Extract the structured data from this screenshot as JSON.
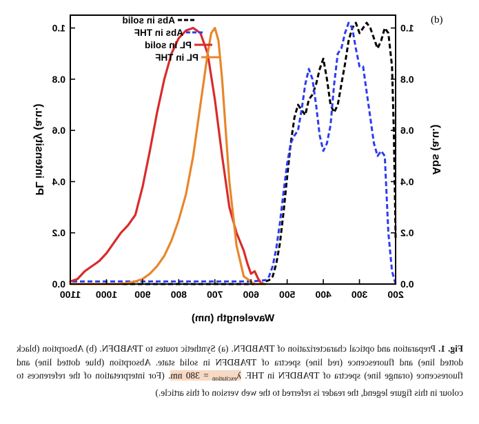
{
  "colors": {
    "red": "#d92b2b",
    "orange": "#e8862a",
    "blue": "#2b3bf0",
    "black": "#000000",
    "highlight": "#f7d9c4"
  },
  "figure": {
    "panel_label": "(b)"
  },
  "caption": {
    "prefix": "Fig. 1.",
    "part1": " Preparation and optical characterization of TPABDFN. (a) Synthetic routes to TPABDFN. (b) Absorption (black dotted line) and fluorescence (red line) spectra of TPABDFN in solid state. Absorption (blue dotted line) and fluorescence (orange line) spectra of TPABDFN in THF. ",
    "lambda": "λ",
    "lambda_sub": "excitation",
    "lambda_eq": " = 380 nm",
    "part2": ". (For interpretation of the references to colour in this figure legend, the reader is referred to the web version of this article.)"
  },
  "chart_data": {
    "type": "line",
    "mirrored": true,
    "xlabel": "Wavelength (nm)",
    "ylabel_left": "PL intensity (a.u.)",
    "ylabel_right": "Abs (a.u.)",
    "xlim": [
      200,
      1100
    ],
    "xticks": [
      200,
      300,
      400,
      500,
      600,
      700,
      800,
      900,
      1000,
      1100
    ],
    "ylim": [
      0,
      1.05
    ],
    "yticks": [
      "0.0",
      "0.2",
      "0.4",
      "0.6",
      "0.8",
      "1.0"
    ],
    "legend": [
      "Abs in solid",
      "Abs in THF",
      "PL in solid",
      "PL in THF"
    ],
    "series": [
      {
        "name": "Abs in solid",
        "color": "#000000",
        "style": "dash",
        "x": [
          200,
          205,
          210,
          220,
          230,
          240,
          250,
          260,
          270,
          280,
          290,
          300,
          310,
          320,
          330,
          340,
          350,
          360,
          370,
          380,
          390,
          400,
          410,
          420,
          430,
          440,
          450,
          460,
          470,
          480,
          490,
          500,
          510,
          520,
          530,
          540,
          550,
          560,
          570,
          580,
          600,
          700,
          800,
          900,
          1100
        ],
        "y": [
          0.18,
          0.6,
          0.85,
          0.98,
          1.0,
          0.95,
          0.92,
          0.96,
          1.0,
          1.02,
          1.0,
          0.98,
          1.02,
          1.0,
          0.95,
          0.86,
          0.78,
          0.7,
          0.67,
          0.7,
          0.8,
          0.88,
          0.84,
          0.78,
          0.74,
          0.72,
          0.66,
          0.68,
          0.7,
          0.65,
          0.55,
          0.42,
          0.28,
          0.16,
          0.08,
          0.03,
          0.015,
          0.01,
          0.0,
          0.0,
          0.0,
          0.0,
          0.0,
          0.0,
          0.0
        ]
      },
      {
        "name": "Abs in THF",
        "color": "#2b3bf0",
        "style": "dash",
        "x": [
          200,
          210,
          220,
          230,
          240,
          250,
          260,
          270,
          280,
          290,
          300,
          310,
          320,
          330,
          340,
          350,
          360,
          370,
          380,
          390,
          400,
          410,
          420,
          430,
          440,
          450,
          460,
          470,
          480,
          490,
          500,
          510,
          520,
          530,
          540,
          550,
          560,
          600,
          700,
          800,
          900,
          1100
        ],
        "y": [
          0.0,
          0.05,
          0.2,
          0.5,
          0.52,
          0.5,
          0.55,
          0.65,
          0.75,
          0.85,
          0.85,
          0.92,
          1.0,
          1.02,
          0.98,
          0.92,
          0.9,
          0.78,
          0.62,
          0.55,
          0.52,
          0.58,
          0.7,
          0.8,
          0.84,
          0.78,
          0.68,
          0.6,
          0.58,
          0.55,
          0.47,
          0.36,
          0.24,
          0.14,
          0.07,
          0.03,
          0.015,
          0.01,
          0.01,
          0.01,
          0.01,
          0.01
        ]
      },
      {
        "name": "PL in solid",
        "color": "#d92b2b",
        "style": "solid",
        "x": [
          560,
          570,
          580,
          590,
          600,
          610,
          620,
          640,
          660,
          680,
          700,
          720,
          740,
          760,
          780,
          800,
          820,
          840,
          860,
          880,
          900,
          920,
          940,
          960,
          980,
          1000,
          1020,
          1040,
          1060,
          1080,
          1100
        ],
        "y": [
          0.0,
          0.0,
          0.02,
          0.05,
          0.04,
          0.08,
          0.13,
          0.2,
          0.3,
          0.5,
          0.72,
          0.9,
          0.98,
          1.0,
          0.99,
          0.96,
          0.9,
          0.8,
          0.67,
          0.52,
          0.38,
          0.27,
          0.23,
          0.2,
          0.16,
          0.12,
          0.09,
          0.07,
          0.05,
          0.02,
          0.01
        ]
      },
      {
        "name": "PL in THF",
        "color": "#e8862a",
        "style": "solid",
        "x": [
          560,
          590,
          620,
          640,
          660,
          670,
          680,
          690,
          700,
          710,
          720,
          740,
          760,
          780,
          800,
          820,
          840,
          860,
          880,
          900,
          920,
          940,
          960,
          1000,
          1100
        ],
        "y": [
          0.0,
          0.0,
          0.03,
          0.15,
          0.4,
          0.6,
          0.8,
          0.95,
          1.0,
          0.98,
          0.9,
          0.7,
          0.5,
          0.35,
          0.25,
          0.17,
          0.11,
          0.07,
          0.04,
          0.02,
          0.01,
          0.005,
          0.0,
          0.0,
          0.0
        ]
      }
    ]
  }
}
